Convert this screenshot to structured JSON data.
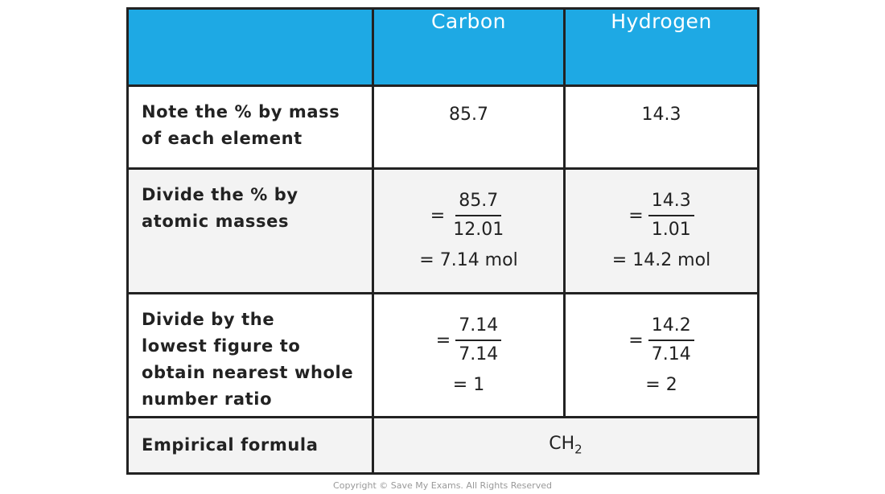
{
  "table": {
    "header": {
      "columns": [
        "Carbon",
        "Hydrogen"
      ]
    },
    "rows": [
      {
        "label": [
          "Note the % by mass",
          "of each element"
        ],
        "cells": [
          {
            "value": "85.7"
          },
          {
            "value": "14.3"
          }
        ]
      },
      {
        "label": [
          "Divide the % by",
          "atomic masses"
        ],
        "cells": [
          {
            "sign": "=",
            "numerator": "85.7",
            "denominator": "12.01",
            "result": "= 7.14 mol"
          },
          {
            "sign": "=",
            "numerator": "14.3",
            "denominator": "1.01",
            "result": "= 14.2 mol"
          }
        ]
      },
      {
        "label": [
          "Divide by the",
          "lowest figure to",
          "obtain nearest whole",
          "number ratio"
        ],
        "cells": [
          {
            "sign": "=",
            "numerator": "7.14",
            "denominator": "7.14",
            "result": "= 1"
          },
          {
            "sign": "=",
            "numerator": "14.2",
            "denominator": "7.14",
            "result": "= 2"
          }
        ]
      },
      {
        "label": [
          "Empirical formula"
        ],
        "formula": {
          "base": "CH",
          "subscript": "2"
        }
      }
    ]
  },
  "footer": {
    "copyright": "Copyright © Save My Exams. All Rights Reserved"
  }
}
